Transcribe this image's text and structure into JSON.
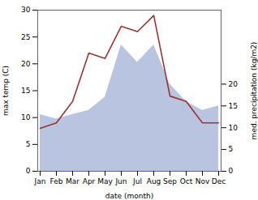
{
  "chart_data": {
    "type": "line",
    "categories": [
      "Jan",
      "Feb",
      "Mar",
      "Apr",
      "May",
      "Jun",
      "Jul",
      "Aug",
      "Sep",
      "Oct",
      "Nov",
      "Dec"
    ],
    "xlabel": "date (month)",
    "ylabel": "max temp (C)",
    "y2label": "med. precipitation (kg/m2)",
    "ylim": [
      0,
      30
    ],
    "yticks": [
      0,
      5,
      10,
      15,
      20,
      25,
      30
    ],
    "y2lim": [
      0,
      37
    ],
    "y2ticks": [
      0,
      5,
      10,
      15,
      20
    ],
    "series": [
      {
        "type": "area",
        "axis": "y2",
        "color": "#b8c4e0",
        "values": [
          13,
          12,
          13,
          14,
          17,
          29,
          25,
          29,
          20,
          16,
          14,
          15
        ]
      },
      {
        "type": "line",
        "color": "#9b3333",
        "values": [
          8,
          9,
          13,
          22,
          21,
          27,
          26,
          29,
          14,
          13,
          9,
          9
        ]
      }
    ]
  }
}
